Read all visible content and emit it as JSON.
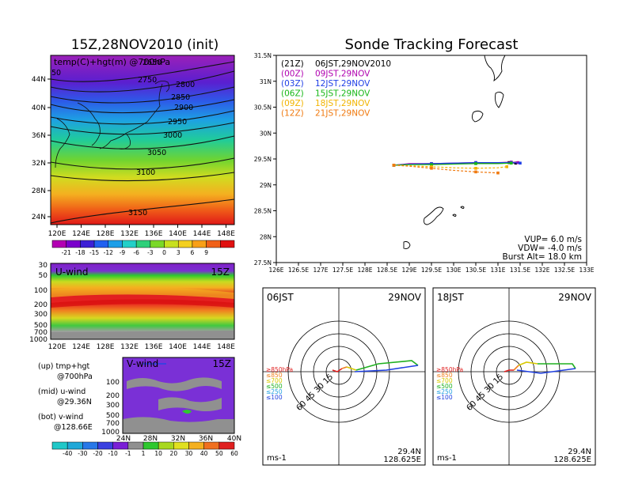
{
  "titles": {
    "left": "15Z,28NOV2010 (init)",
    "right": "Sonde Tracking Forecast"
  },
  "map_panel": {
    "label": "temp(C)+hgt(m) @700hPa",
    "lon_ticks": [
      "120E",
      "124E",
      "128E",
      "132E",
      "136E",
      "140E",
      "144E",
      "148E"
    ],
    "lat_ticks": [
      "24N",
      "28N",
      "32N",
      "36N",
      "40N",
      "44N"
    ],
    "contours": [
      "2650",
      "2750",
      "2800",
      "2850",
      "2900",
      "2950",
      "3000",
      "3050",
      "3100",
      "3150"
    ],
    "left_edge_label": "50"
  },
  "temp_colorbar": {
    "labels": [
      "-21",
      "-18",
      "-15",
      "-12",
      "-9",
      "-6",
      "-3",
      "0",
      "3",
      "6",
      "9"
    ],
    "colors": [
      "#b300b3",
      "#7a00cc",
      "#3c1fd6",
      "#2060f0",
      "#1c9ee8",
      "#22d0c8",
      "#2ed07a",
      "#7ad828",
      "#c8e020",
      "#f4d020",
      "#f8a018",
      "#f06018",
      "#e01010"
    ]
  },
  "uwind_panel": {
    "label": "U-wind",
    "time": "15Z",
    "p_ticks": [
      "30",
      "50",
      "100",
      "200",
      "300",
      "500",
      "700",
      "1000"
    ],
    "lon_ticks": [
      "120E",
      "124E",
      "128E",
      "132E",
      "136E",
      "140E",
      "144E",
      "148E"
    ]
  },
  "vwind_panel": {
    "label": "V-wind",
    "time": "15Z",
    "p_ticks": [
      "100",
      "200",
      "300",
      "500",
      "700",
      "1000"
    ],
    "lat_ticks": [
      "24N",
      "28N",
      "32N",
      "36N",
      "40N"
    ]
  },
  "legend_notes": [
    {
      "a": "(up) tmp+hgt",
      "b": "@700hPa"
    },
    {
      "a": "(mid) u-wind",
      "b": "@29.36N"
    },
    {
      "a": "(bot) v-wind",
      "b": "@128.66E"
    }
  ],
  "wind_colorbar": {
    "labels": [
      "-40",
      "-30",
      "-20",
      "-10",
      "-1",
      "1",
      "10",
      "20",
      "30",
      "40",
      "50",
      "60"
    ],
    "colors": [
      "#20c8c8",
      "#20a8d8",
      "#2878e8",
      "#3a40e0",
      "#7a1fd6",
      "#909090",
      "#2ec82e",
      "#a8d820",
      "#e0e020",
      "#f4b020",
      "#f07020",
      "#e02020"
    ]
  },
  "track_map": {
    "lon_ticks": [
      "126E",
      "126.5E",
      "127E",
      "127.5E",
      "128E",
      "128.5E",
      "129E",
      "129.5E",
      "130E",
      "130.5E",
      "131E",
      "131.5E",
      "132E",
      "132.5E",
      "133E"
    ],
    "lat_ticks": [
      "27.5N",
      "28N",
      "28.5N",
      "29N",
      "29.5N",
      "30N",
      "30.5N",
      "31N",
      "31.5N"
    ],
    "launches": [
      {
        "utc": "(21Z)",
        "jst": "06JST,29NOV2010",
        "color": "#000000"
      },
      {
        "utc": "(00Z)",
        "jst": "09JST,29NOV",
        "color": "#b000b0"
      },
      {
        "utc": "(03Z)",
        "jst": "12JST,29NOV",
        "color": "#1f3fe6"
      },
      {
        "utc": "(06Z)",
        "jst": "15JST,29NOV",
        "color": "#18b818"
      },
      {
        "utc": "(09Z)",
        "jst": "18JST,29NOV",
        "color": "#f2b400"
      },
      {
        "utc": "(12Z)",
        "jst": "21JST,29NOV",
        "color": "#f07a10"
      }
    ],
    "params": [
      "VUP= 6.0 m/s",
      "VDW= -4.0 m/s",
      "Burst Alt= 18.0 km"
    ]
  },
  "hodographs": [
    {
      "time": "06JST",
      "date": "29NOV",
      "lat": "29.4N",
      "lon": "128.625E",
      "unit": "ms-1",
      "levels": [
        "≥850hPa",
        "≤850",
        "≤700",
        "≤500",
        "≤250",
        "≤100"
      ],
      "level_colors": [
        "#e02020",
        "#f08020",
        "#d8c800",
        "#20b020",
        "#20a0e0",
        "#2040e0"
      ],
      "rings": [
        "15",
        "30",
        "45",
        "60"
      ]
    },
    {
      "time": "18JST",
      "date": "29NOV",
      "lat": "29.4N",
      "lon": "128.625E",
      "unit": "ms-1",
      "levels": [
        "≥850hPa",
        "≤850",
        "≤700",
        "≤500",
        "≤250",
        "≤100"
      ],
      "level_colors": [
        "#e02020",
        "#f08020",
        "#d8c800",
        "#20b020",
        "#20a0e0",
        "#2040e0"
      ],
      "rings": [
        "15",
        "30",
        "45",
        "60"
      ]
    }
  ],
  "chart_data": {
    "type": "line",
    "title": "Sonde Tracking Forecast",
    "xlabel": "",
    "ylabel": "",
    "xlim": [
      126,
      133
    ],
    "ylim": [
      27.5,
      31.5
    ],
    "series": [
      {
        "name": "(21Z) 06JST,29NOV2010",
        "lon": [
          128.65,
          129.0,
          129.5,
          130.0,
          130.5,
          131.0,
          131.25,
          131.4
        ],
        "lat": [
          29.38,
          29.4,
          29.4,
          29.41,
          29.42,
          29.42,
          29.43,
          29.42
        ]
      },
      {
        "name": "(00Z) 09JST,29NOV",
        "lon": [
          128.65,
          129.0,
          129.5,
          130.0,
          130.5,
          131.0,
          131.3,
          131.45
        ],
        "lat": [
          29.38,
          29.41,
          29.41,
          29.42,
          29.43,
          29.43,
          29.44,
          29.43
        ]
      },
      {
        "name": "(03Z) 12JST,29NOV",
        "lon": [
          128.65,
          129.0,
          129.5,
          130.0,
          130.5,
          131.0,
          131.3,
          131.5
        ],
        "lat": [
          29.38,
          29.4,
          29.41,
          29.42,
          29.43,
          29.43,
          29.43,
          29.42
        ]
      },
      {
        "name": "(06Z) 15JST,29NOV",
        "lon": [
          128.65,
          129.0,
          129.5,
          130.0,
          130.5,
          131.0,
          131.3
        ],
        "lat": [
          29.38,
          29.39,
          29.39,
          29.4,
          29.41,
          29.41,
          29.42
        ]
      },
      {
        "name": "(09Z) 18JST,29NOV",
        "lon": [
          128.65,
          129.0,
          129.5,
          130.0,
          130.5,
          131.0,
          131.2
        ],
        "lat": [
          29.38,
          29.37,
          29.35,
          29.33,
          29.32,
          29.33,
          29.35
        ]
      },
      {
        "name": "(12Z) 21JST,29NOV",
        "lon": [
          128.65,
          129.0,
          129.5,
          130.0,
          130.5,
          131.0
        ],
        "lat": [
          29.38,
          29.36,
          29.32,
          29.28,
          29.25,
          29.23
        ]
      }
    ]
  }
}
